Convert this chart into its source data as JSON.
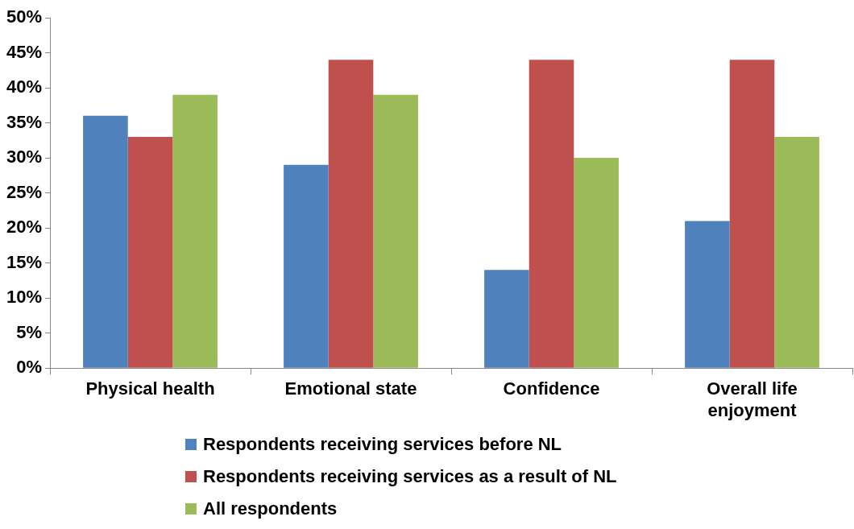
{
  "chart_data": {
    "type": "bar",
    "categories": [
      "Physical health",
      "Emotional state",
      "Confidence",
      "Overall life enjoyment"
    ],
    "series": [
      {
        "name": "Respondents receiving services before NL",
        "color": "#4f81bd",
        "values": [
          36,
          29,
          14,
          21
        ]
      },
      {
        "name": "Respondents receiving services as a result of NL",
        "color": "#c0504d",
        "values": [
          33,
          44,
          44,
          44
        ]
      },
      {
        "name": "All respondents",
        "color": "#9bbb59",
        "values": [
          39,
          39,
          30,
          33
        ]
      }
    ],
    "ylim": [
      0,
      50
    ],
    "yticks": [
      {
        "value": 0,
        "label": "0%"
      },
      {
        "value": 5,
        "label": "5%"
      },
      {
        "value": 10,
        "label": "10%"
      },
      {
        "value": 15,
        "label": "15%"
      },
      {
        "value": 20,
        "label": "20%"
      },
      {
        "value": 25,
        "label": "25%"
      },
      {
        "value": 30,
        "label": "30%"
      },
      {
        "value": 35,
        "label": "35%"
      },
      {
        "value": 40,
        "label": "40%"
      },
      {
        "value": 45,
        "label": "45%"
      },
      {
        "value": 50,
        "label": "50%"
      }
    ],
    "grid": false,
    "legend": "bottom"
  }
}
